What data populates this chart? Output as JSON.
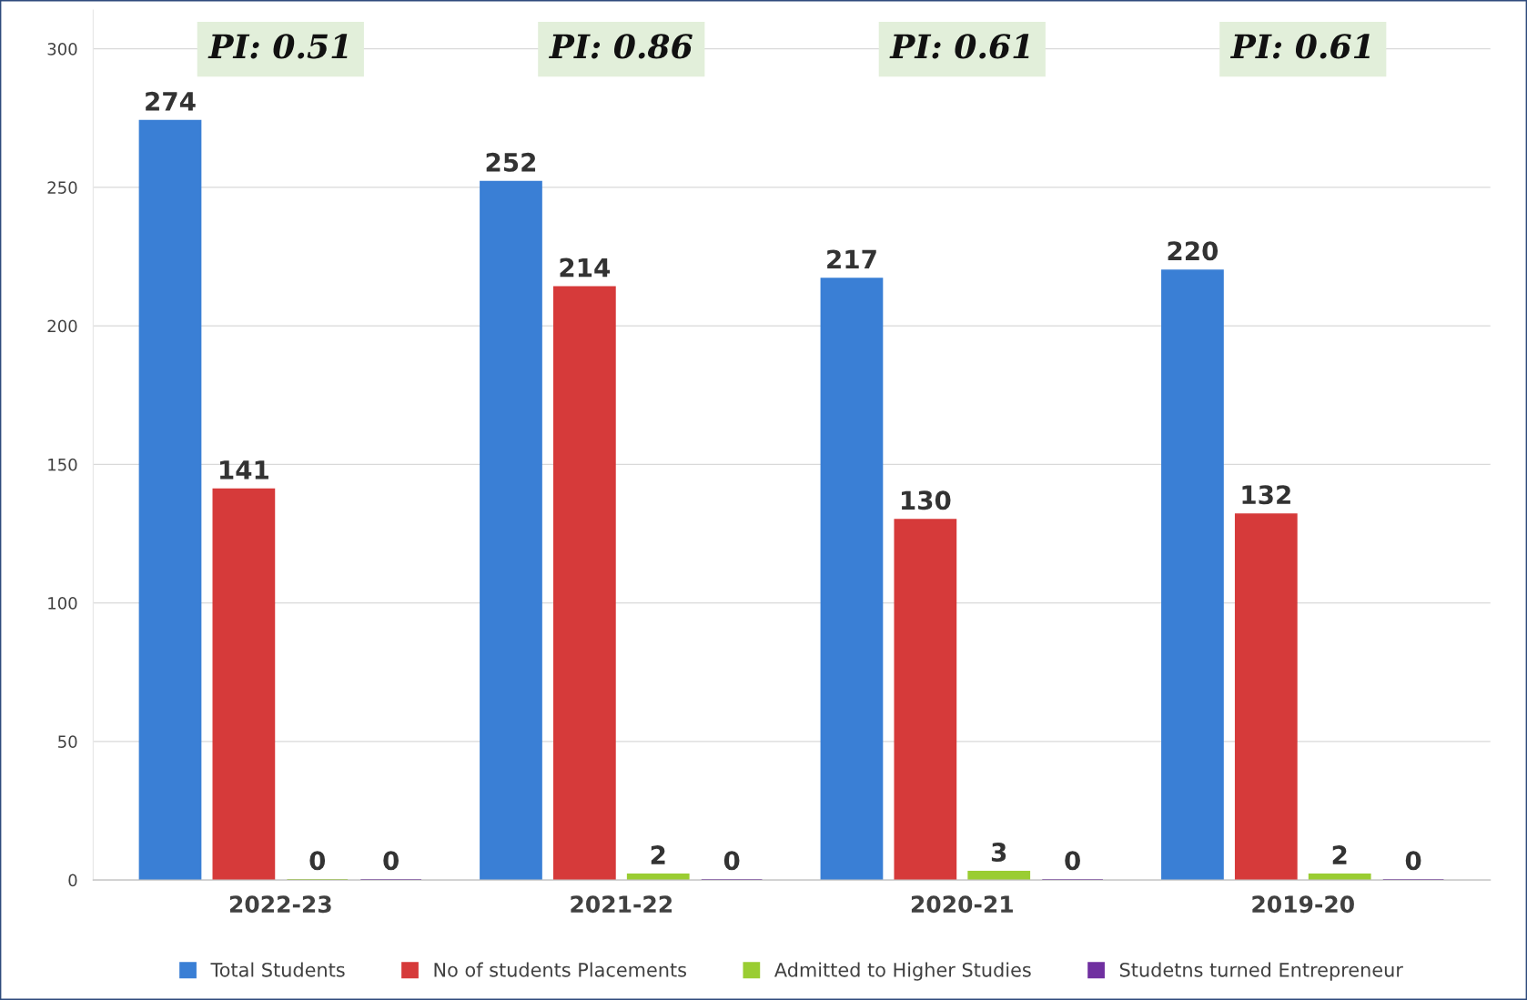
{
  "chart_data": {
    "type": "bar",
    "categories": [
      "2022-23",
      "2021-22",
      "2020-21",
      "2019-20"
    ],
    "series": [
      {
        "name": "Total Students",
        "color": "#3a7fd5",
        "values": [
          274,
          252,
          217,
          220
        ]
      },
      {
        "name": "No of students Placements",
        "color": "#d63a3a",
        "values": [
          141,
          214,
          130,
          132
        ]
      },
      {
        "name": "Admitted to Higher Studies",
        "color": "#9acd32",
        "values": [
          0,
          2,
          3,
          2
        ]
      },
      {
        "name": "Studetns turned Entrepreneur",
        "color": "#7030a0",
        "values": [
          0,
          0,
          0,
          0
        ]
      }
    ],
    "annotations": [
      "PI: 0.51",
      "PI: 0.86",
      "PI: 0.61",
      "PI: 0.61"
    ],
    "ylim": [
      0,
      314
    ],
    "yticks": [
      0,
      50,
      100,
      150,
      200,
      250,
      300
    ],
    "grid": "y",
    "legend": "bottom",
    "data_labels": true
  }
}
